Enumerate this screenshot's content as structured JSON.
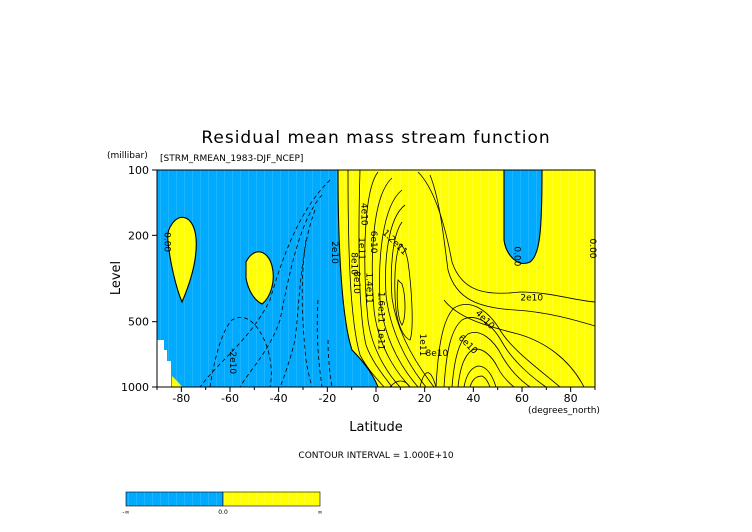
{
  "chart_data": {
    "type": "contour",
    "title": "Residual mean mass stream function",
    "subtitle": "[STRM_RMEAN_1983-DJF_NCEP]",
    "xlabel": "Latitude",
    "x_units": "(degrees_north)",
    "ylabel": "Level",
    "y_units": "(millibar)",
    "xlim": [
      -90,
      90
    ],
    "ylim": [
      1000,
      100
    ],
    "y_scale": "log",
    "x_ticks": [
      -80,
      -60,
      -40,
      -20,
      0,
      20,
      40,
      60,
      80
    ],
    "x_tick_labels": [
      "-80",
      "-60",
      "-40",
      "-20",
      "0",
      "20",
      "40",
      "60",
      "80"
    ],
    "y_ticks": [
      100,
      200,
      500,
      1000
    ],
    "y_tick_labels": [
      "100",
      "200",
      "500",
      "1000"
    ],
    "contour_interval_text": "CONTOUR INTERVAL = 1.000E+10",
    "fill_colors": {
      "negative": "#00aaff",
      "positive": "#ffff00"
    },
    "contour_labels": [
      {
        "text": "0.00",
        "lat": -87,
        "lev": 215,
        "rot": 90
      },
      {
        "text": "0.00",
        "lat": 88,
        "lev": 230,
        "rot": 90
      },
      {
        "text": "0.00",
        "lat": 57,
        "lev": 250,
        "rot": 90
      },
      {
        "text": "2e10",
        "lat": -18,
        "lev": 240,
        "rot": 90
      },
      {
        "text": "4e10",
        "lat": -6,
        "lev": 160,
        "rot": 90
      },
      {
        "text": "6e10",
        "lat": -2,
        "lev": 215,
        "rot": 90
      },
      {
        "text": "8e10",
        "lat": -10,
        "lev": 270,
        "rot": 90
      },
      {
        "text": "1e11",
        "lat": -7,
        "lev": 230,
        "rot": 90
      },
      {
        "text": "8e10",
        "lat": -9,
        "lev": 330,
        "rot": 90
      },
      {
        "text": "1.2e11",
        "lat": 7,
        "lev": 220,
        "rot": 45
      },
      {
        "text": "1.4e11",
        "lat": -4,
        "lev": 350,
        "rot": 90
      },
      {
        "text": "1.6e11",
        "lat": 1,
        "lev": 430,
        "rot": 90
      },
      {
        "text": "1e11",
        "lat": 1,
        "lev": 600,
        "rot": 90
      },
      {
        "text": "1e11",
        "lat": 18,
        "lev": 640,
        "rot": 90
      },
      {
        "text": "8e10",
        "lat": 25,
        "lev": 720,
        "rot": 0
      },
      {
        "text": "6e10",
        "lat": 37,
        "lev": 650,
        "rot": 45
      },
      {
        "text": "4e10",
        "lat": 44,
        "lev": 500,
        "rot": 45
      },
      {
        "text": "2e10",
        "lat": 64,
        "lev": 400,
        "rot": 0
      },
      {
        "text": "-2e10",
        "lat": -60,
        "lev": 760,
        "rot": 90
      }
    ],
    "colorbar_labels": [
      "-∞",
      "0.0",
      "∞"
    ]
  }
}
